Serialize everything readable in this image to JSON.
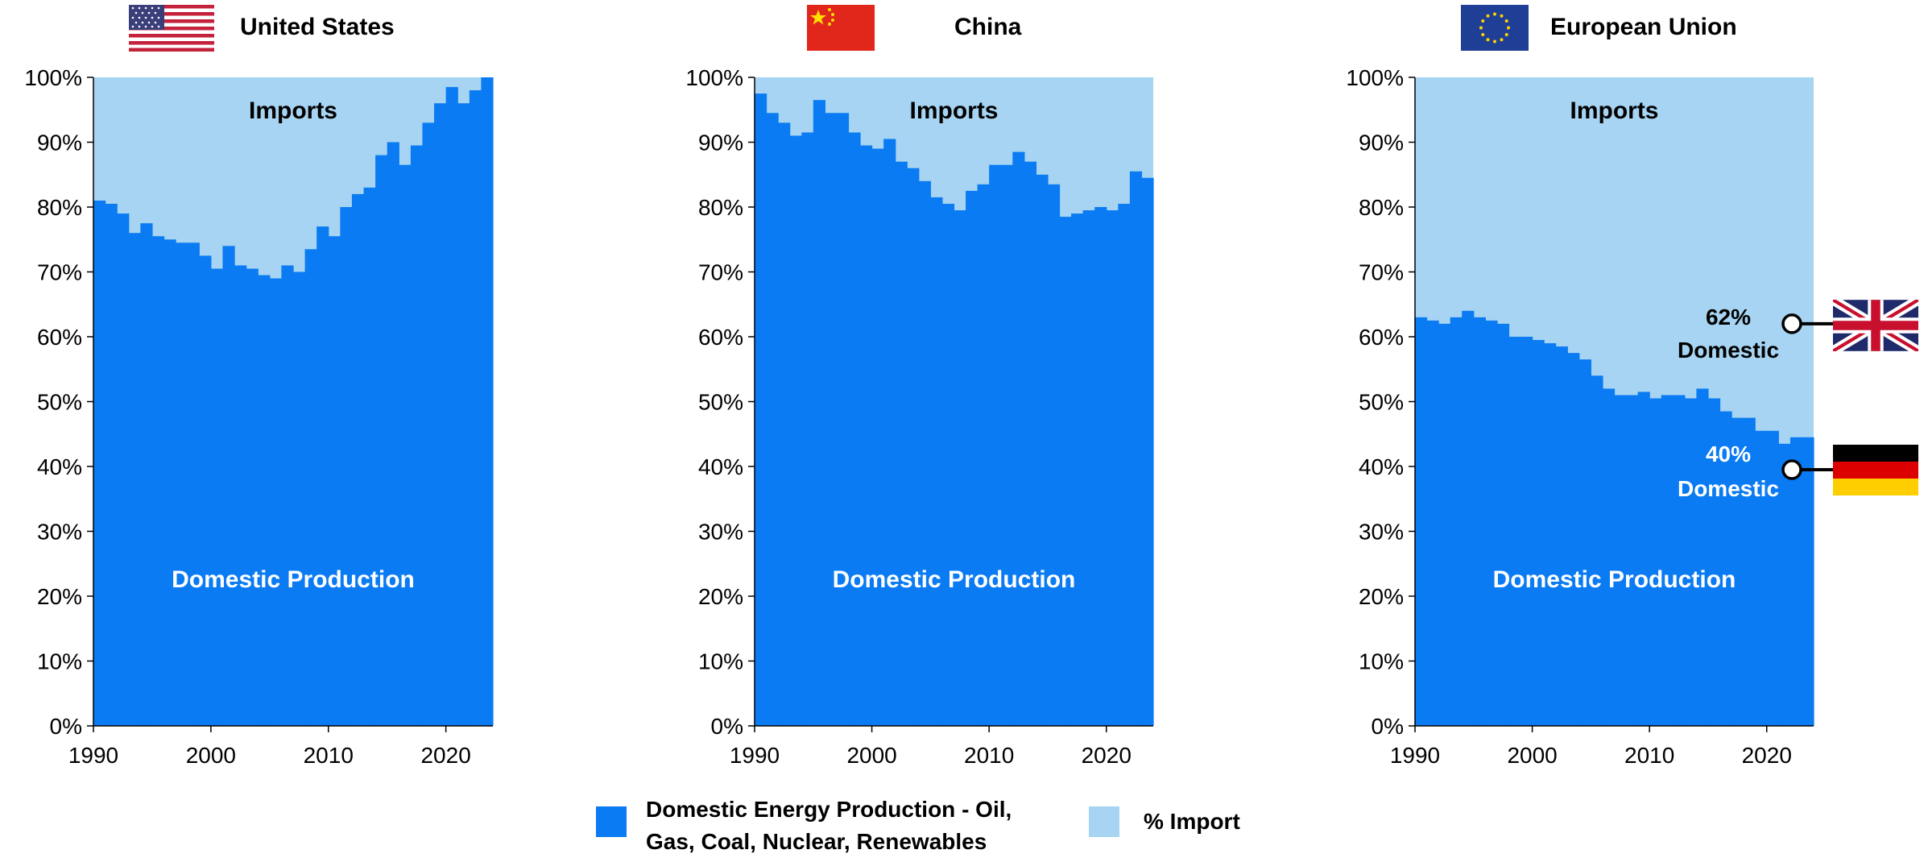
{
  "colors": {
    "domestic": "#0a7bf2",
    "imports": "#a6d4f2",
    "text": "#000000",
    "inside_text": "#ffffff"
  },
  "chart_data": [
    {
      "type": "area",
      "title": "United States",
      "flag_icon": "us-flag-icon",
      "xlabel": "",
      "ylabel": "",
      "ylim": [
        0,
        100
      ],
      "xlim": [
        1990,
        2023
      ],
      "x_ticks": [
        "1990",
        "2000",
        "2010",
        "2020"
      ],
      "y_ticks": [
        "0%",
        "10%",
        "20%",
        "30%",
        "40%",
        "50%",
        "60%",
        "70%",
        "80%",
        "90%",
        "100%"
      ],
      "grid": false,
      "x": [
        1990,
        1991,
        1992,
        1993,
        1994,
        1995,
        1996,
        1997,
        1998,
        1999,
        2000,
        2001,
        2002,
        2003,
        2004,
        2005,
        2006,
        2007,
        2008,
        2009,
        2010,
        2011,
        2012,
        2013,
        2014,
        2015,
        2016,
        2017,
        2018,
        2019,
        2020,
        2021,
        2022,
        2023
      ],
      "series": [
        {
          "values": [
            81,
            80.5,
            79,
            76,
            77.5,
            75.5,
            75,
            74.5,
            74.5,
            72.5,
            70.5,
            74,
            71,
            70.5,
            69.5,
            69,
            71,
            70,
            73.5,
            77,
            75.5,
            80,
            82,
            83,
            88,
            90,
            86.5,
            89.5,
            93,
            96,
            98.5,
            96,
            98,
            100
          ]
        }
      ],
      "annotations": {
        "imports": "Imports",
        "domestic": "Domestic Production"
      }
    },
    {
      "type": "area",
      "title": "China",
      "flag_icon": "china-flag-icon",
      "xlabel": "",
      "ylabel": "",
      "ylim": [
        0,
        100
      ],
      "xlim": [
        1990,
        2023
      ],
      "x_ticks": [
        "1990",
        "2000",
        "2010",
        "2020"
      ],
      "y_ticks": [
        "0%",
        "10%",
        "20%",
        "30%",
        "40%",
        "50%",
        "60%",
        "70%",
        "80%",
        "90%",
        "100%"
      ],
      "grid": false,
      "x": [
        1990,
        1991,
        1992,
        1993,
        1994,
        1995,
        1996,
        1997,
        1998,
        1999,
        2000,
        2001,
        2002,
        2003,
        2004,
        2005,
        2006,
        2007,
        2008,
        2009,
        2010,
        2011,
        2012,
        2013,
        2014,
        2015,
        2016,
        2017,
        2018,
        2019,
        2020,
        2021,
        2022,
        2023
      ],
      "series": [
        {
          "values": [
            97.5,
            94.5,
            93,
            91,
            91.5,
            96.5,
            94.5,
            94.5,
            91.5,
            89.5,
            89,
            90.5,
            87,
            86,
            84,
            81.5,
            80.5,
            79.5,
            82.5,
            83.5,
            86.5,
            86.5,
            88.5,
            87,
            85,
            83.5,
            78.5,
            79,
            79.5,
            80,
            79.5,
            80.5,
            85.5,
            84.5
          ]
        }
      ],
      "annotations": {
        "imports": "Imports",
        "domestic": "Domestic Production"
      }
    },
    {
      "type": "area",
      "title": "European Union",
      "flag_icon": "eu-flag-icon",
      "xlabel": "",
      "ylabel": "",
      "ylim": [
        0,
        100
      ],
      "xlim": [
        1990,
        2023
      ],
      "x_ticks": [
        "1990",
        "2000",
        "2010",
        "2020"
      ],
      "y_ticks": [
        "0%",
        "10%",
        "20%",
        "30%",
        "40%",
        "50%",
        "60%",
        "70%",
        "80%",
        "90%",
        "100%"
      ],
      "grid": false,
      "x": [
        1990,
        1991,
        1992,
        1993,
        1994,
        1995,
        1996,
        1997,
        1998,
        1999,
        2000,
        2001,
        2002,
        2003,
        2004,
        2005,
        2006,
        2007,
        2008,
        2009,
        2010,
        2011,
        2012,
        2013,
        2014,
        2015,
        2016,
        2017,
        2018,
        2019,
        2020,
        2021,
        2022,
        2023
      ],
      "series": [
        {
          "values": [
            63,
            62.5,
            62,
            63,
            64,
            63,
            62.5,
            62,
            60,
            60,
            59.5,
            59,
            58.5,
            57.5,
            56.5,
            54,
            52,
            51,
            51,
            51.5,
            50.5,
            51,
            51,
            50.5,
            52,
            50.5,
            48.5,
            47.5,
            47.5,
            45.5,
            45.5,
            43.5,
            44.5,
            44.5
          ]
        }
      ],
      "annotations": {
        "imports": "Imports",
        "domestic": "Domestic Production",
        "uk_callout": {
          "pct": "62%",
          "label": "Domestic",
          "value": 62,
          "flag_icon": "uk-flag-icon"
        },
        "de_callout": {
          "pct": "40%",
          "label": "Domestic",
          "value": 39.5,
          "flag_icon": "germany-flag-icon"
        }
      }
    }
  ],
  "legend": {
    "domestic_line1": "Domestic Energy Production - Oil,",
    "domestic_line2": "Gas, Coal, Nuclear, Renewables",
    "imports": "% Import"
  }
}
